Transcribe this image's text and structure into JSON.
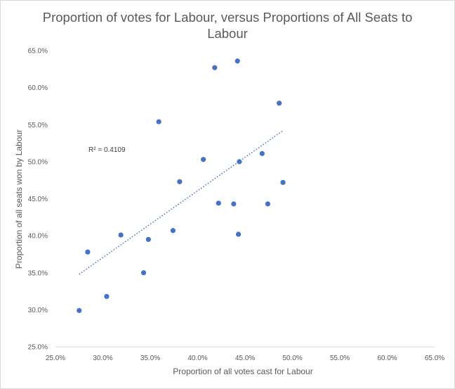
{
  "chart_data": {
    "type": "scatter",
    "title_lines": [
      "Proportion of votes for Labour, versus Proportions of All Seats to",
      "Labour"
    ],
    "xlabel": "Proportion of all votes cast for Labour",
    "ylabel": "Proportion of all seats won by Labour",
    "xlim": [
      25.0,
      65.0
    ],
    "ylim": [
      25.0,
      65.0
    ],
    "x_ticks": [
      25,
      30,
      35,
      40,
      45,
      50,
      55,
      60,
      65
    ],
    "y_ticks": [
      25,
      30,
      35,
      40,
      45,
      50,
      55,
      60,
      65
    ],
    "x_tick_labels": [
      "25.0%",
      "30.0%",
      "35.0%",
      "40.0%",
      "45.0%",
      "50.0%",
      "55.0%",
      "60.0%",
      "65.0%"
    ],
    "y_tick_labels": [
      "25.0%",
      "30.0%",
      "35.0%",
      "40.0%",
      "45.0%",
      "50.0%",
      "55.0%",
      "60.0%",
      "65.0%"
    ],
    "grid": false,
    "marker_color": "#4472c4",
    "trendline": {
      "type": "linear",
      "style": "dotted",
      "color": "#4472c4",
      "x_range": [
        27.5,
        49.0
      ],
      "y_range": [
        34.8,
        54.2
      ],
      "annotation": "R² = 0.4109"
    },
    "points": [
      {
        "x": 27.5,
        "y": 29.9
      },
      {
        "x": 28.4,
        "y": 37.8
      },
      {
        "x": 30.4,
        "y": 31.8
      },
      {
        "x": 31.9,
        "y": 40.1
      },
      {
        "x": 34.3,
        "y": 35.0
      },
      {
        "x": 34.8,
        "y": 39.5
      },
      {
        "x": 35.9,
        "y": 55.4
      },
      {
        "x": 37.4,
        "y": 40.7
      },
      {
        "x": 38.1,
        "y": 47.3
      },
      {
        "x": 40.6,
        "y": 50.3
      },
      {
        "x": 41.8,
        "y": 62.7
      },
      {
        "x": 42.2,
        "y": 44.4
      },
      {
        "x": 43.8,
        "y": 44.3
      },
      {
        "x": 44.2,
        "y": 63.6
      },
      {
        "x": 44.3,
        "y": 40.2
      },
      {
        "x": 44.4,
        "y": 50.0
      },
      {
        "x": 46.8,
        "y": 51.1
      },
      {
        "x": 47.4,
        "y": 44.3
      },
      {
        "x": 48.6,
        "y": 57.9
      },
      {
        "x": 49.0,
        "y": 47.2
      }
    ]
  }
}
